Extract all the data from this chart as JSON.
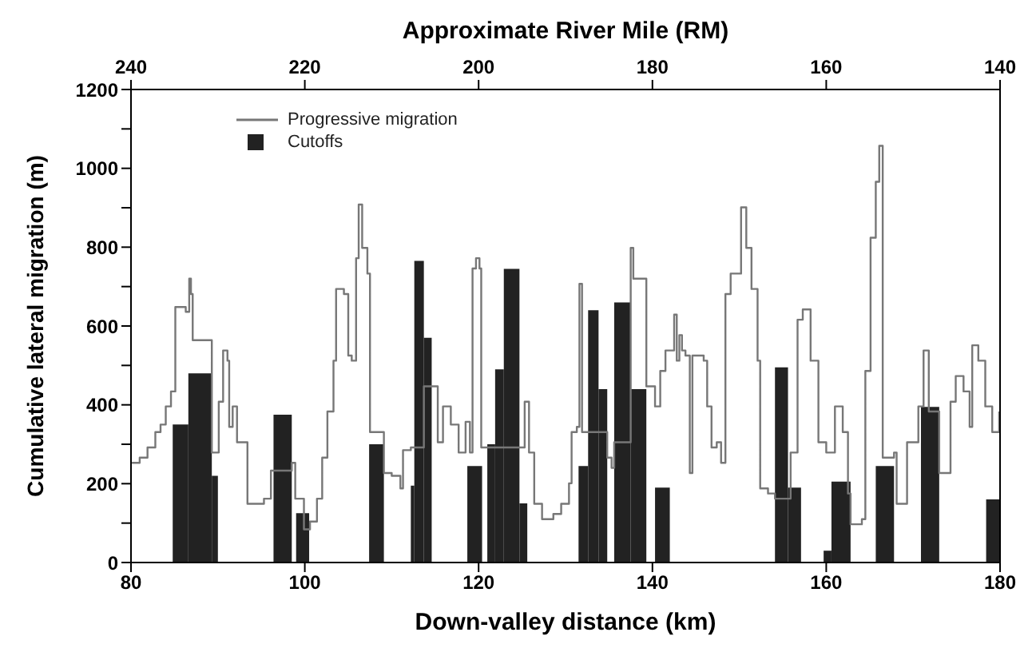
{
  "chart_data": {
    "type": "step",
    "xlabel": "Down-valley distance (km)",
    "ylabel": "Cumulative lateral migration (m)",
    "x2label": "Approximate River Mile (RM)",
    "xlim": [
      80,
      180
    ],
    "xticks": [
      80,
      100,
      120,
      140,
      160,
      180
    ],
    "x2lim": [
      240,
      140
    ],
    "x2ticks": [
      240,
      220,
      200,
      180,
      160,
      140
    ],
    "ylim": [
      0,
      1200
    ],
    "yticks": [
      0,
      {
        "value": 100,
        "label": null
      },
      200,
      {
        "value": 300,
        "label": null
      },
      400,
      {
        "value": 500,
        "label": null
      },
      600,
      {
        "value": 700,
        "label": null
      },
      800,
      {
        "value": 900,
        "label": null
      },
      1000,
      {
        "value": 1100,
        "label": null
      },
      1200
    ],
    "grid": false,
    "legend": "top left",
    "marker": "none",
    "line_style": "solid",
    "series": [
      {
        "name": "Progressive migration",
        "color": "#777777",
        "x": [
          80.1,
          81.0,
          81.9,
          82.8,
          83.4,
          84.0,
          84.6,
          85.1,
          85.7,
          86.3,
          86.7,
          86.9,
          87.1,
          89.3,
          90.1,
          90.6,
          91.1,
          91.3,
          91.7,
          92.2,
          92.7,
          93.4,
          93.9,
          95.3,
          96.1,
          98.5,
          98.9,
          99.9,
          100.6,
          101.4,
          102.0,
          102.6,
          103.3,
          103.6,
          104.5,
          105.0,
          105.4,
          105.9,
          106.2,
          106.6,
          107.2,
          107.5,
          109.1,
          110.0,
          111.0,
          111.3,
          112.2,
          113.7,
          114.9,
          115.3,
          115.9,
          116.8,
          117.7,
          118.5,
          119.0,
          119.3,
          119.7,
          120.1,
          120.3,
          125.3,
          125.8,
          126.4,
          127.3,
          128.6,
          129.5,
          130.4,
          130.7,
          131.3,
          131.6,
          131.9,
          134.8,
          135.3,
          135.6,
          137.5,
          137.8,
          139.3,
          140.3,
          140.9,
          141.5,
          142.5,
          142.8,
          143.1,
          143.4,
          143.8,
          144.3,
          144.6,
          145.9,
          146.3,
          146.8,
          147.4,
          147.9,
          148.4,
          149.0,
          150.2,
          150.8,
          151.4,
          152.1,
          152.4,
          153.3,
          154.1,
          155.9,
          156.7,
          157.3,
          158.2,
          159.1,
          160.0,
          161.0,
          161.9,
          162.5,
          162.8,
          164.1,
          164.5,
          165.1,
          165.7,
          166.1,
          166.5,
          167.8,
          168.1,
          169.0,
          169.3,
          170.6,
          171.2,
          171.8,
          173.0,
          174.0,
          174.3,
          174.9,
          175.8,
          176.5,
          176.8,
          177.5,
          178.3,
          179.1,
          179.9
        ],
        "values": [
          253,
          266,
          292,
          331,
          350,
          396,
          434,
          648,
          648,
          636,
          720,
          681,
          564,
          279,
          408,
          538,
          512,
          344,
          396,
          305,
          305,
          149,
          149,
          162,
          233,
          253,
          162,
          84,
          104,
          162,
          266,
          383,
          512,
          694,
          681,
          525,
          512,
          772,
          908,
          798,
          733,
          331,
          227,
          220,
          188,
          285,
          292,
          447,
          447,
          305,
          396,
          350,
          279,
          357,
          279,
          746,
          772,
          746,
          292,
          408,
          279,
          149,
          110,
          123,
          149,
          201,
          331,
          344,
          707,
          331,
          266,
          240,
          305,
          798,
          720,
          447,
          396,
          486,
          538,
          629,
          512,
          577,
          538,
          525,
          227,
          525,
          512,
          396,
          292,
          305,
          253,
          681,
          733,
          901,
          798,
          694,
          512,
          188,
          175,
          162,
          279,
          616,
          642,
          512,
          305,
          279,
          396,
          331,
          175,
          97,
          110,
          486,
          824,
          966,
          1057,
          266,
          279,
          149,
          149,
          305,
          396,
          538,
          383,
          227,
          227,
          408,
          473,
          434,
          344,
          551,
          512,
          396,
          331,
          383
        ]
      },
      {
        "name": "Cutoffs",
        "type": "histogram",
        "color": "#222222",
        "bins": [
          84.8,
          86.6,
          89.3,
          90.0,
          96.4,
          98.5,
          99.0,
          100.5,
          107.4,
          109.1,
          112.2,
          112.6,
          113.7,
          114.6,
          118.7,
          120.4,
          121.0,
          121.9,
          122.9,
          124.7,
          125.6,
          131.5,
          132.6,
          133.8,
          134.8,
          135.6,
          137.5,
          139.3,
          140.3,
          142.0,
          154.1,
          155.6,
          157.1,
          159.7,
          160.6,
          162.8,
          165.7,
          167.8,
          170.9,
          173.0,
          178.4,
          180
        ],
        "values": [
          350,
          480,
          220,
          0,
          375,
          0,
          125,
          0,
          300,
          0,
          195,
          765,
          570,
          0,
          245,
          0,
          300,
          490,
          745,
          150,
          0,
          245,
          640,
          440,
          0,
          660,
          440,
          0,
          190,
          0,
          495,
          190,
          0,
          30,
          205,
          0,
          245,
          0,
          395,
          0,
          160
        ]
      }
    ]
  }
}
